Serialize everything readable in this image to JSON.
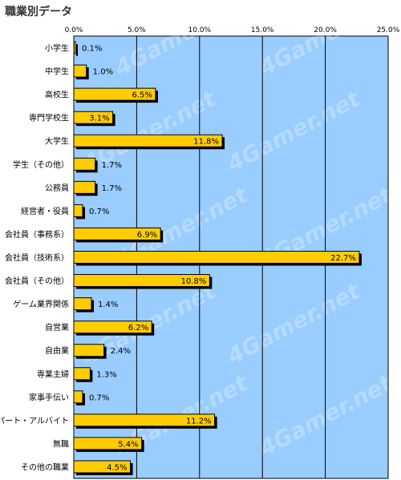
{
  "title": "職業別データ",
  "watermark": "4Gamer.net",
  "colors": {
    "plot_bg": "#99ccff",
    "bar": "#ffcc00",
    "bar_border": "#000000",
    "shadow": "#000000",
    "grid": "#000000",
    "page_bg": "#ffffff"
  },
  "chart_data": {
    "type": "bar",
    "orientation": "horizontal",
    "title": "職業別データ",
    "xlim": [
      0,
      25
    ],
    "x_ticks": [
      "0.0%",
      "5.0%",
      "10.0%",
      "15.0%",
      "20.0%",
      "25.0%"
    ],
    "grid": true,
    "categories": [
      "小学生",
      "中学生",
      "高校生",
      "専門学校生",
      "大学生",
      "学生（その他）",
      "公務員",
      "経営者・役員",
      "会社員（事務系）",
      "会社員（技術系）",
      "会社員（その他）",
      "ゲーム業界関係",
      "自営業",
      "自由業",
      "専業主婦",
      "家事手伝い",
      "パート・アルバイト",
      "無職",
      "その他の職業"
    ],
    "values": [
      0.1,
      1.0,
      6.5,
      3.1,
      11.8,
      1.7,
      1.7,
      0.7,
      6.9,
      22.7,
      10.8,
      1.4,
      6.2,
      2.4,
      1.3,
      0.7,
      11.2,
      5.4,
      4.5
    ],
    "value_labels": [
      "0.1%",
      "1.0%",
      "6.5%",
      "3.1%",
      "11.8%",
      "1.7%",
      "1.7%",
      "0.7%",
      "6.9%",
      "22.7%",
      "10.8%",
      "1.4%",
      "6.2%",
      "2.4%",
      "1.3%",
      "0.7%",
      "11.2%",
      "5.4%",
      "4.5%"
    ]
  }
}
